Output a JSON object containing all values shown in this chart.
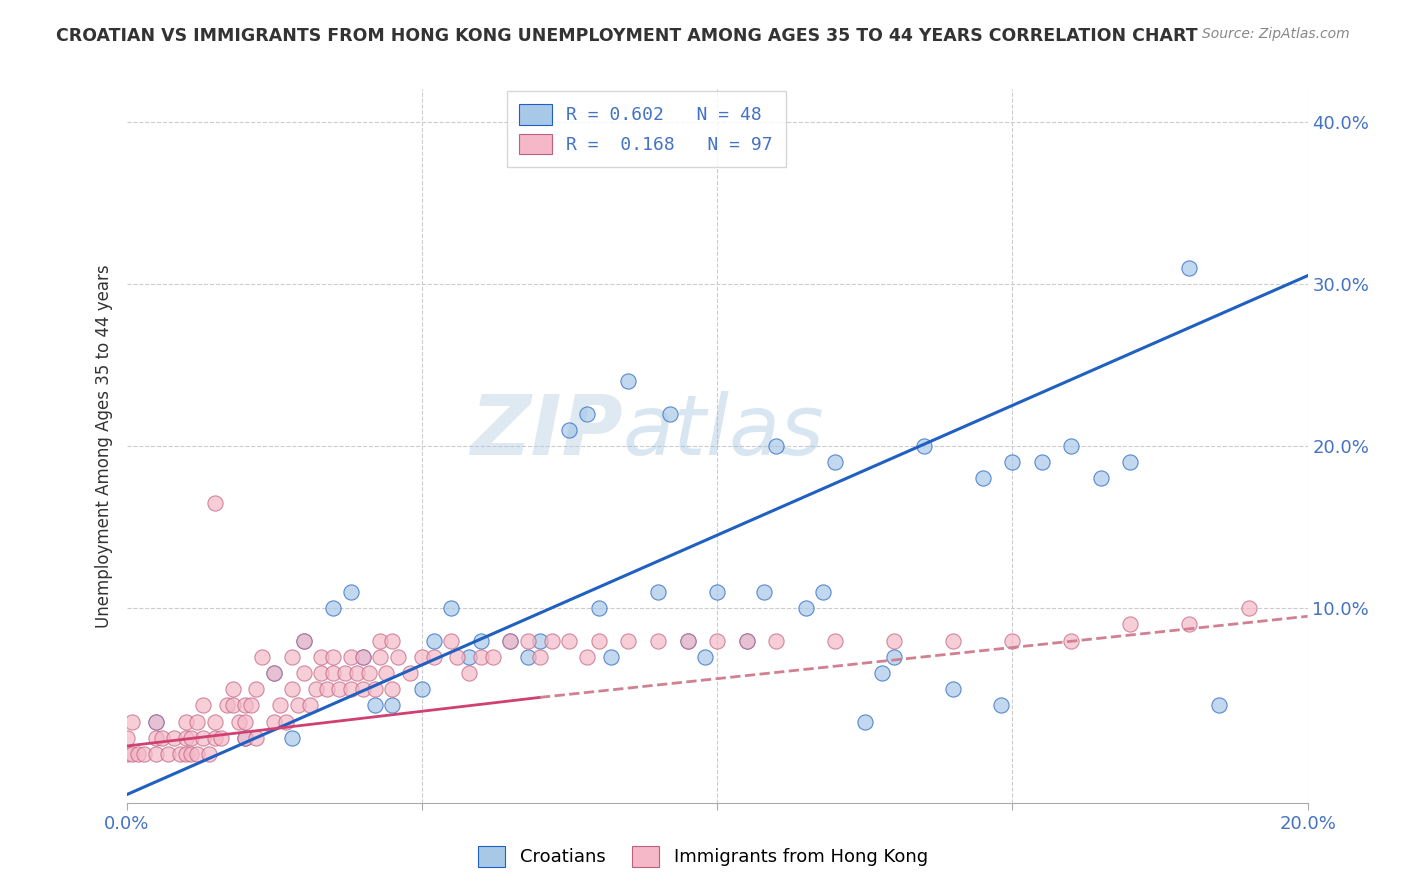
{
  "title": "CROATIAN VS IMMIGRANTS FROM HONG KONG UNEMPLOYMENT AMONG AGES 35 TO 44 YEARS CORRELATION CHART",
  "source": "Source: ZipAtlas.com",
  "ylabel": "Unemployment Among Ages 35 to 44 years",
  "xlim": [
    0.0,
    0.2
  ],
  "ylim": [
    -0.02,
    0.42
  ],
  "legend_r1": "R = 0.602",
  "legend_n1": "N = 48",
  "legend_r2": "R = 0.168",
  "legend_n2": "N = 97",
  "blue_color": "#a8c8e8",
  "pink_color": "#f4b8c8",
  "blue_line_color": "#2060c0",
  "pink_line_color": "#d04070",
  "pink_dash_color": "#d08090",
  "background_color": "#ffffff",
  "watermark": "ZIPatlas",
  "blue_x": [
    0.005,
    0.02,
    0.025,
    0.028,
    0.03,
    0.035,
    0.038,
    0.04,
    0.042,
    0.045,
    0.05,
    0.052,
    0.055,
    0.058,
    0.06,
    0.065,
    0.068,
    0.07,
    0.075,
    0.078,
    0.08,
    0.082,
    0.085,
    0.09,
    0.092,
    0.095,
    0.098,
    0.1,
    0.105,
    0.108,
    0.11,
    0.115,
    0.118,
    0.12,
    0.125,
    0.128,
    0.13,
    0.135,
    0.14,
    0.145,
    0.148,
    0.15,
    0.155,
    0.16,
    0.165,
    0.17,
    0.18,
    0.185
  ],
  "blue_y": [
    0.03,
    0.02,
    0.06,
    0.02,
    0.08,
    0.1,
    0.11,
    0.07,
    0.04,
    0.04,
    0.05,
    0.08,
    0.1,
    0.07,
    0.08,
    0.08,
    0.07,
    0.08,
    0.21,
    0.22,
    0.1,
    0.07,
    0.24,
    0.11,
    0.22,
    0.08,
    0.07,
    0.11,
    0.08,
    0.11,
    0.2,
    0.1,
    0.11,
    0.19,
    0.03,
    0.06,
    0.07,
    0.2,
    0.05,
    0.18,
    0.04,
    0.19,
    0.19,
    0.2,
    0.18,
    0.19,
    0.31,
    0.04
  ],
  "blue_line_x": [
    0.0,
    0.2
  ],
  "blue_line_y": [
    -0.015,
    0.305
  ],
  "pink_x": [
    0.0,
    0.0,
    0.001,
    0.001,
    0.002,
    0.003,
    0.005,
    0.005,
    0.005,
    0.006,
    0.007,
    0.008,
    0.009,
    0.01,
    0.01,
    0.01,
    0.011,
    0.011,
    0.012,
    0.012,
    0.013,
    0.013,
    0.014,
    0.015,
    0.015,
    0.016,
    0.017,
    0.018,
    0.018,
    0.019,
    0.02,
    0.02,
    0.02,
    0.021,
    0.022,
    0.022,
    0.023,
    0.025,
    0.025,
    0.026,
    0.027,
    0.028,
    0.028,
    0.029,
    0.03,
    0.03,
    0.031,
    0.032,
    0.033,
    0.033,
    0.034,
    0.035,
    0.035,
    0.036,
    0.037,
    0.038,
    0.038,
    0.039,
    0.04,
    0.04,
    0.041,
    0.042,
    0.043,
    0.043,
    0.044,
    0.045,
    0.045,
    0.046,
    0.048,
    0.05,
    0.052,
    0.055,
    0.056,
    0.058,
    0.06,
    0.062,
    0.065,
    0.068,
    0.07,
    0.072,
    0.075,
    0.078,
    0.08,
    0.085,
    0.09,
    0.095,
    0.1,
    0.105,
    0.11,
    0.12,
    0.13,
    0.14,
    0.15,
    0.16,
    0.17,
    0.18,
    0.19
  ],
  "pink_y": [
    0.01,
    0.02,
    0.01,
    0.03,
    0.01,
    0.01,
    0.01,
    0.02,
    0.03,
    0.02,
    0.01,
    0.02,
    0.01,
    0.01,
    0.02,
    0.03,
    0.01,
    0.02,
    0.01,
    0.03,
    0.02,
    0.04,
    0.01,
    0.02,
    0.03,
    0.02,
    0.04,
    0.04,
    0.05,
    0.03,
    0.02,
    0.03,
    0.04,
    0.04,
    0.02,
    0.05,
    0.07,
    0.03,
    0.06,
    0.04,
    0.03,
    0.05,
    0.07,
    0.04,
    0.06,
    0.08,
    0.04,
    0.05,
    0.07,
    0.06,
    0.05,
    0.06,
    0.07,
    0.05,
    0.06,
    0.05,
    0.07,
    0.06,
    0.05,
    0.07,
    0.06,
    0.05,
    0.07,
    0.08,
    0.06,
    0.05,
    0.08,
    0.07,
    0.06,
    0.07,
    0.07,
    0.08,
    0.07,
    0.06,
    0.07,
    0.07,
    0.08,
    0.08,
    0.07,
    0.08,
    0.08,
    0.07,
    0.08,
    0.08,
    0.08,
    0.08,
    0.08,
    0.08,
    0.08,
    0.08,
    0.08,
    0.08,
    0.08,
    0.08,
    0.09,
    0.09,
    0.1
  ],
  "pink_outlier_x": [
    0.015
  ],
  "pink_outlier_y": [
    0.165
  ],
  "pink_solid_line_x": [
    0.0,
    0.07
  ],
  "pink_solid_line_y": [
    0.015,
    0.045
  ],
  "pink_dash_line_x": [
    0.07,
    0.2
  ],
  "pink_dash_line_y": [
    0.045,
    0.095
  ]
}
